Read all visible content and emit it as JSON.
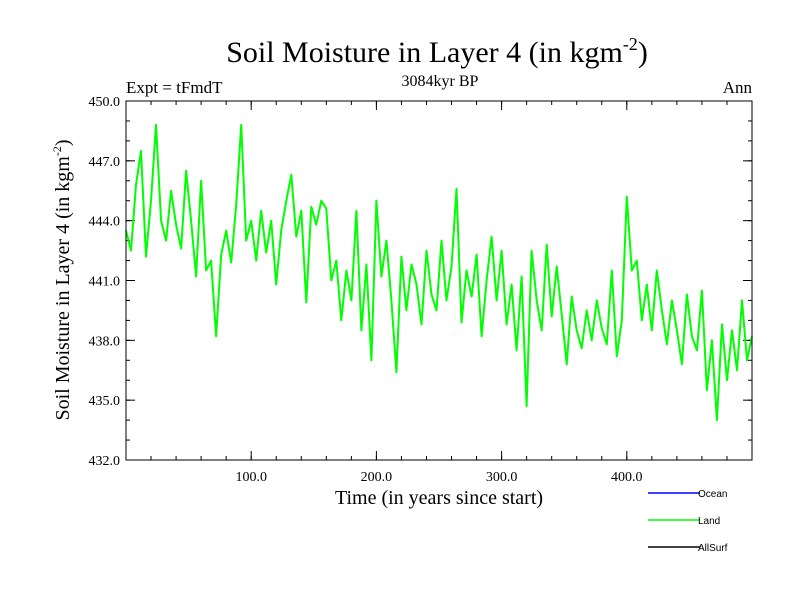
{
  "chart_data": {
    "type": "line",
    "title": "Soil Moisture in Layer 4 (in kgm",
    "title_sup": "-2",
    "title_end": ")",
    "subtitle": "3084kyr BP",
    "left_label": "Expt = tFmdT",
    "right_label": "Ann",
    "xlabel": "Time (in years since start)",
    "ylabel": "Soil Moisture in Layer 4 (in kgm",
    "ylabel_sup": "-2",
    "ylabel_end": ")",
    "xlim": [
      0,
      500
    ],
    "ylim": [
      432,
      450
    ],
    "x_ticks": [
      100,
      200,
      300,
      400
    ],
    "x_tick_labels": [
      "100.0",
      "200.0",
      "300.0",
      "400.0"
    ],
    "y_ticks": [
      432,
      435,
      438,
      441,
      444,
      447,
      450
    ],
    "y_tick_labels": [
      "432.0",
      "435.0",
      "438.0",
      "441.0",
      "444.0",
      "447.0",
      "450.0"
    ],
    "legend_position": "bottom-right",
    "legend": [
      {
        "name": "Ocean",
        "color": "#0000ff"
      },
      {
        "name": "Land",
        "color": "#00ff00"
      },
      {
        "name": "AllSurf",
        "color": "#000000"
      }
    ],
    "series": [
      {
        "name": "Land",
        "color": "#00ff00",
        "x": [
          0,
          4,
          8,
          12,
          16,
          20,
          24,
          28,
          32,
          36,
          40,
          44,
          48,
          52,
          56,
          60,
          64,
          68,
          72,
          76,
          80,
          84,
          88,
          92,
          96,
          100,
          104,
          108,
          112,
          116,
          120,
          124,
          128,
          132,
          136,
          140,
          144,
          148,
          152,
          156,
          160,
          164,
          168,
          172,
          176,
          180,
          184,
          188,
          192,
          196,
          200,
          204,
          208,
          212,
          216,
          220,
          224,
          228,
          232,
          236,
          240,
          244,
          248,
          252,
          256,
          260,
          264,
          268,
          272,
          276,
          280,
          284,
          288,
          292,
          296,
          300,
          304,
          308,
          312,
          316,
          320,
          324,
          328,
          332,
          336,
          340,
          344,
          348,
          352,
          356,
          360,
          364,
          368,
          372,
          376,
          380,
          384,
          388,
          392,
          396,
          400,
          404,
          408,
          412,
          416,
          420,
          424,
          428,
          432,
          436,
          440,
          444,
          448,
          452,
          456,
          460,
          464,
          468,
          472,
          476,
          480,
          484,
          488,
          492,
          496,
          500
        ],
        "values": [
          443.5,
          442.5,
          445.8,
          447.5,
          442.2,
          445.0,
          448.8,
          444.0,
          443.0,
          445.5,
          443.8,
          442.6,
          446.5,
          444.0,
          441.2,
          446.0,
          441.5,
          442.0,
          438.2,
          442.3,
          443.5,
          441.9,
          444.8,
          448.8,
          443.0,
          444.0,
          442.0,
          444.5,
          442.4,
          444.0,
          440.8,
          443.5,
          445.0,
          446.3,
          443.2,
          444.5,
          439.9,
          444.7,
          443.8,
          445.0,
          444.6,
          441.0,
          442.0,
          439.0,
          441.5,
          440.0,
          444.5,
          438.5,
          441.8,
          437.0,
          445.0,
          441.2,
          443.0,
          440.0,
          436.4,
          442.2,
          439.5,
          441.8,
          440.8,
          438.8,
          442.5,
          440.3,
          439.5,
          443.0,
          440.0,
          441.7,
          445.6,
          438.9,
          441.5,
          440.2,
          442.3,
          438.2,
          441.0,
          443.2,
          440.0,
          442.5,
          438.8,
          440.8,
          437.5,
          441.2,
          434.7,
          442.5,
          440.0,
          438.5,
          442.8,
          439.2,
          441.7,
          439.3,
          436.8,
          440.2,
          438.5,
          437.6,
          439.5,
          438.0,
          440.0,
          438.6,
          437.8,
          441.5,
          437.2,
          439.0,
          445.2,
          441.5,
          442.0,
          439.0,
          440.8,
          438.5,
          441.5,
          439.5,
          437.8,
          440.0,
          438.5,
          436.8,
          440.3,
          438.2,
          437.5,
          440.5,
          435.5,
          438.0,
          434.0,
          438.8,
          436.0,
          438.5,
          436.5,
          440.0,
          437.0,
          438.2
        ]
      }
    ]
  }
}
